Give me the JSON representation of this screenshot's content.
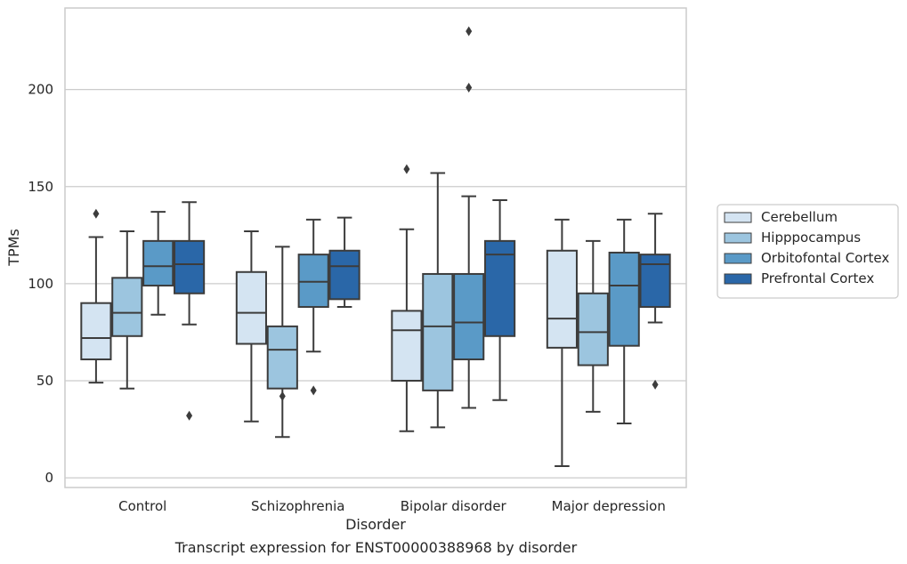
{
  "caption": "Transcript expression for ENST00000388968 by disorder",
  "chart_data": {
    "type": "box",
    "title": "",
    "xlabel": "Disorder",
    "ylabel": "TPMs",
    "ylim": [
      -5,
      242
    ],
    "yticks": [
      0,
      50,
      100,
      150,
      200
    ],
    "grid": "horizontal",
    "legend_position": "right",
    "categories": [
      "Control",
      "Schizophrenia",
      "Bipolar disorder",
      "Major depression"
    ],
    "series": [
      {
        "name": "Cerebellum",
        "color": "#d4e4f2",
        "boxes": [
          {
            "whislo": 49,
            "q1": 61,
            "med": 72,
            "q3": 90,
            "whishi": 124,
            "fliers": [
              136
            ]
          },
          {
            "whislo": 29,
            "q1": 69,
            "med": 85,
            "q3": 106,
            "whishi": 127,
            "fliers": []
          },
          {
            "whislo": 24,
            "q1": 50,
            "med": 76,
            "q3": 86,
            "whishi": 128,
            "fliers": [
              159
            ]
          },
          {
            "whislo": 6,
            "q1": 67,
            "med": 82,
            "q3": 117,
            "whishi": 133,
            "fliers": []
          }
        ]
      },
      {
        "name": "Hipppocampus",
        "color": "#9cc5df",
        "boxes": [
          {
            "whislo": 46,
            "q1": 73,
            "med": 85,
            "q3": 103,
            "whishi": 127,
            "fliers": []
          },
          {
            "whislo": 21,
            "q1": 46,
            "med": 66,
            "q3": 78,
            "whishi": 119,
            "fliers": [
              42
            ]
          },
          {
            "whislo": 26,
            "q1": 45,
            "med": 78,
            "q3": 105,
            "whishi": 157,
            "fliers": []
          },
          {
            "whislo": 34,
            "q1": 58,
            "med": 75,
            "q3": 95,
            "whishi": 122,
            "fliers": []
          }
        ]
      },
      {
        "name": "Orbitofontal Cortex",
        "color": "#5a9ac7",
        "boxes": [
          {
            "whislo": 84,
            "q1": 99,
            "med": 109,
            "q3": 122,
            "whishi": 137,
            "fliers": []
          },
          {
            "whislo": 65,
            "q1": 88,
            "med": 101,
            "q3": 115,
            "whishi": 133,
            "fliers": [
              45
            ]
          },
          {
            "whislo": 36,
            "q1": 61,
            "med": 80,
            "q3": 105,
            "whishi": 145,
            "fliers": [
              201,
              230
            ]
          },
          {
            "whislo": 28,
            "q1": 68,
            "med": 99,
            "q3": 116,
            "whishi": 133,
            "fliers": []
          }
        ]
      },
      {
        "name": "Prefrontal Cortex",
        "color": "#2a67a8",
        "boxes": [
          {
            "whislo": 79,
            "q1": 95,
            "med": 110,
            "q3": 122,
            "whishi": 142,
            "fliers": [
              32
            ]
          },
          {
            "whislo": 88,
            "q1": 92,
            "med": 109,
            "q3": 117,
            "whishi": 134,
            "fliers": []
          },
          {
            "whislo": 40,
            "q1": 73,
            "med": 115,
            "q3": 122,
            "whishi": 143,
            "fliers": []
          },
          {
            "whislo": 80,
            "q1": 88,
            "med": 110,
            "q3": 115,
            "whishi": 136,
            "fliers": [
              48
            ]
          }
        ]
      }
    ]
  }
}
